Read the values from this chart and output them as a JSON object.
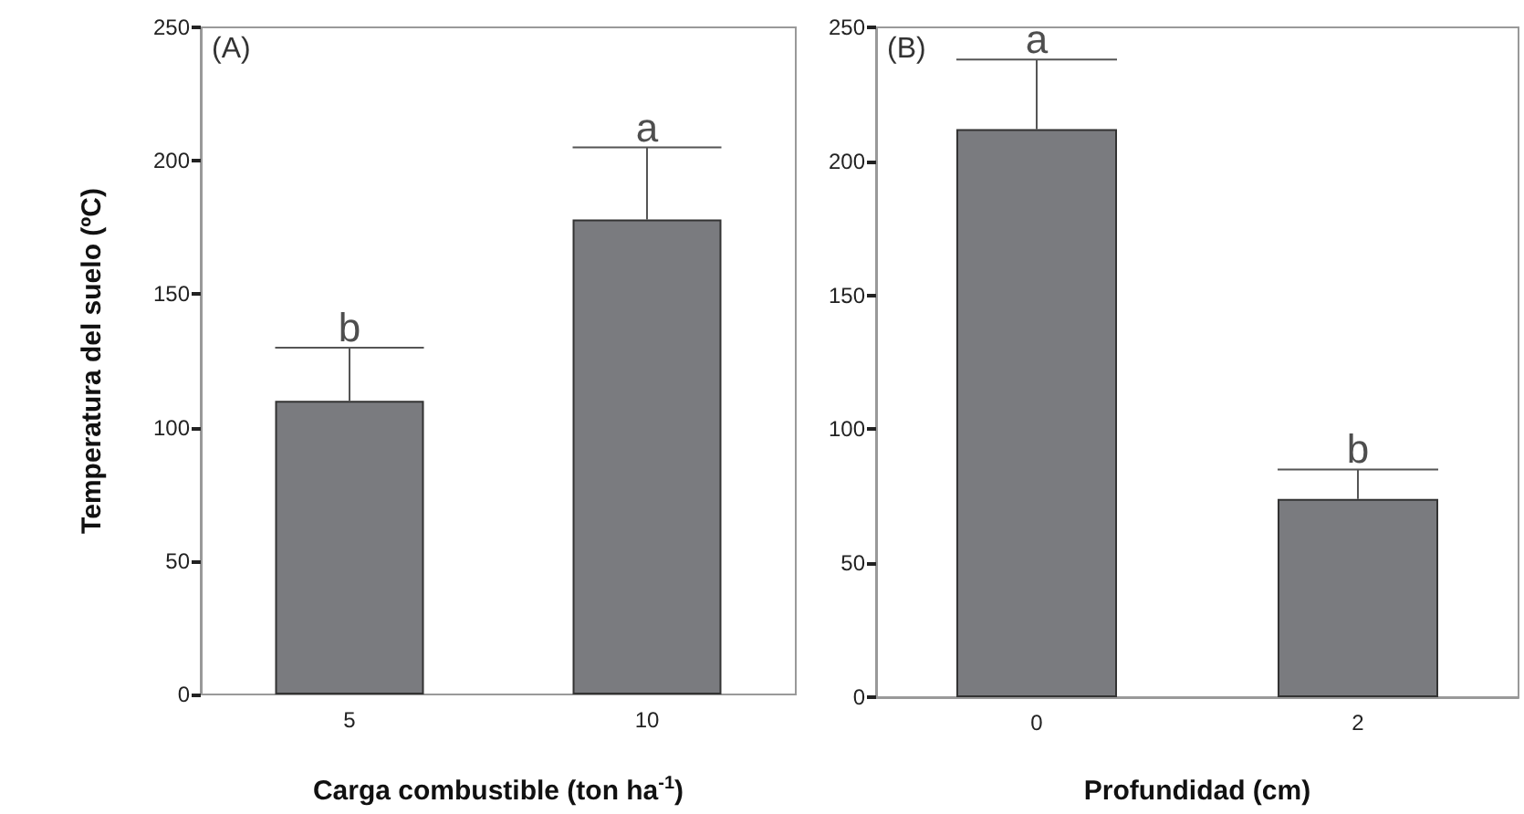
{
  "chart_data": [
    {
      "type": "bar",
      "categories": [
        "5",
        "10"
      ],
      "values": [
        110,
        178
      ],
      "errors": [
        [
          110,
          130
        ],
        [
          178,
          205
        ]
      ],
      "color": "#7a7b7f",
      "xlabel": "Carga combustible (ton ha$^{-1}$)",
      "ylabel": "Temperatura del suelo (ºC)",
      "ylim": [
        0,
        250
      ],
      "yticks": [
        0,
        50,
        100,
        150,
        200,
        250
      ],
      "annotations": [
        "(A)",
        {
          "text": "b",
          "x": "5",
          "y": 130
        },
        {
          "text": "a",
          "x": "10",
          "y": 205
        }
      ]
    },
    {
      "type": "bar",
      "categories": [
        "0",
        "2"
      ],
      "values": [
        212,
        74
      ],
      "errors": [
        [
          212,
          238
        ],
        [
          74,
          85
        ]
      ],
      "color": "#7a7b7f",
      "xlabel": "Profundidad (cm)",
      "ylim": [
        0,
        250
      ],
      "yticks": [
        0,
        50,
        100,
        150,
        200,
        250
      ],
      "annotations": [
        "(B)",
        {
          "text": "a",
          "x": "0",
          "y": 238
        },
        {
          "text": "b",
          "x": "2",
          "y": 85
        }
      ]
    }
  ]
}
